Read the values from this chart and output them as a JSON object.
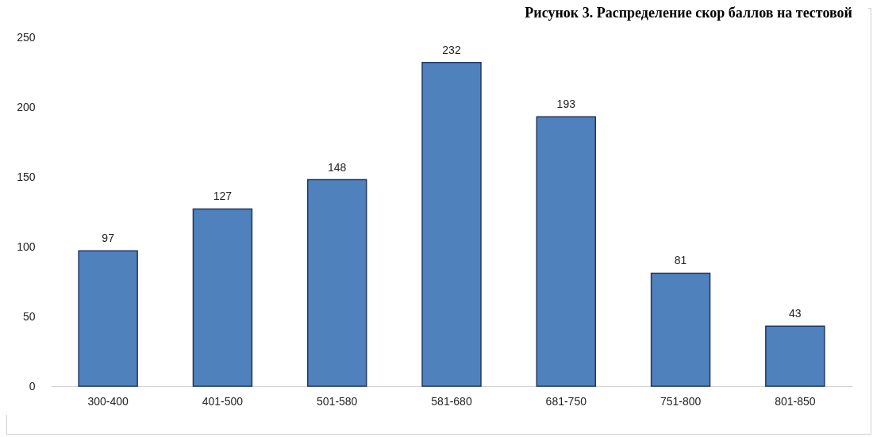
{
  "chart_data": {
    "type": "bar",
    "title": "Рисунок 3. Распределение скор баллов на тестовой",
    "categories": [
      "300-400",
      "401-500",
      "501-580",
      "581-680",
      "681-750",
      "751-800",
      "801-850"
    ],
    "values": [
      97,
      127,
      148,
      232,
      193,
      81,
      43
    ],
    "color": "#4f81bd",
    "ylim": [
      0,
      250
    ],
    "yticks": [
      0,
      50,
      100,
      150,
      200,
      250
    ],
    "grid": false,
    "data_labels": true
  }
}
